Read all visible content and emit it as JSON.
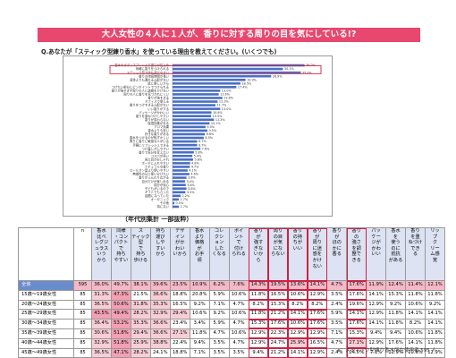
{
  "banner": {
    "title": "大人女性の４人に１人が、香りに対する周りの目を気にしている!?"
  },
  "question": {
    "text": "Q.あなたが「スティック型練り香水」を使っている理由を教えてください。(いくつでも)"
  },
  "chart_data": {
    "type": "bar",
    "orientation": "horizontal",
    "categories": [
      "香水やボディスプレーより香りが控えめ",
      "気軽に香りをつけられる",
      "スティック型で持ち運びやすい",
      "香りの持続時間が長い",
      "液体よりも漏れる心配がない",
      "肌に優しいから",
      "つけたい部分にピンポイントでつけられる",
      "香りが強すぎず周りの人に迷惑をかけない",
      "周りの人に香りを気づかれにくい",
      "香りが強すぎる",
      "オフィスで使える",
      "香りをつけすぎる心配がない",
      "いい香りがする",
      "パッケージがかわいい",
      "香りを重ねづけしやすい",
      "香りが変わらない",
      "保湿効果がある",
      "アロマ効果",
      "香水よりも安い",
      "好きな香りがある",
      "香水をつけるのが恥ずかしい",
      "周りに香りに敏感な人がいる",
      "手軽にリフレッシュできる",
      "つけ直しがしやすい",
      "香りで気分を変えたい",
      "コスパが良い",
      "見た目がおしゃれ",
      "ポーチに入れやすい",
      "ナチュラルな香り",
      "ロールオン型より使いやすい",
      "無香料の日と使い分けたい",
      "香りがふんわり広がる",
      "自分だけが楽しめる",
      "成分が安心",
      "子どもがいるので",
      "ギフトでもらった",
      "話題になっていた",
      "オーガニック",
      "その他",
      "特にない"
    ],
    "values": [
      36.0,
      30.1,
      35.0,
      26.9,
      19.9,
      18.5,
      17.4,
      13.0,
      12.6,
      13.6,
      12.3,
      11.7,
      13.0,
      10.6,
      10.5,
      11.3,
      10.1,
      9.0,
      9.5,
      8.8,
      8.5,
      6.7,
      6.7,
      7.6,
      5.8,
      5.4,
      5.6,
      4.8,
      4.7,
      4.1,
      4.6,
      3.8,
      3.4,
      3.6,
      3.8,
      3.5,
      2.2,
      1.7,
      0.5,
      1.7
    ],
    "highlighted_top": [
      "香水やボディスプレーより香りが控えめ",
      "気軽に香りをつけられる"
    ],
    "xlim": [
      0,
      40
    ]
  },
  "table": {
    "caption": "（年代別集計 一部抜粋）",
    "headers": [
      [
        "n"
      ],
      [
        "香水",
        "比べ",
        "レグジ",
        "ュラス",
        "いう",
        "から"
      ],
      [
        "同様",
        "・コン",
        "パクト",
        "で",
        "持ち",
        "やすい"
      ],
      [
        "ス",
        "ティック",
        "型",
        "で",
        "持ち",
        "歩ける"
      ],
      [
        "持ち",
        "運び",
        "しや",
        "すい",
        "から"
      ],
      [
        "デザ",
        "イン",
        "がか",
        "わい",
        "いから"
      ],
      [
        "香水",
        "より",
        "価格",
        "が",
        "お手",
        "頃"
      ],
      [
        "コレ",
        "クシ",
        "ョン",
        "した",
        "くなる"
      ],
      [
        "ポイ",
        "ント",
        "で",
        "付け",
        "られる"
      ],
      [
        "香り",
        "が",
        "強す",
        "ぎな",
        "いか",
        "ら"
      ],
      [
        "周り",
        "の目",
        "が気",
        "にな",
        "らない"
      ],
      [
        "香り",
        "の持",
        "ちが",
        "いい"
      ],
      [
        "香り",
        "が",
        "周り",
        "に迷",
        "惑を",
        "かけ",
        "ない"
      ],
      [
        "香り",
        "が",
        "ほの",
        "かに",
        "香る"
      ],
      [
        "香り",
        "の",
        "強さ",
        "を調",
        "整で",
        "きる"
      ],
      [
        "パッ",
        "ケー",
        "ジが",
        "かわ",
        "いい"
      ],
      [
        "香水",
        "を",
        "使う",
        "のに",
        "抵抗",
        "がある"
      ],
      [
        "香り",
        "を重",
        "ねづけ",
        "でき",
        "る"
      ],
      [
        "リッ",
        "プ",
        "ク",
        "リー",
        "ム感",
        "覚"
      ]
    ],
    "rows": [
      {
        "label": "全体",
        "n": "595",
        "values": [
          "36.0%",
          "49.7%",
          "38.1%",
          "39.6%",
          "23.5%",
          "10.9%",
          "6.2%",
          "7.6%",
          "14.3%",
          "19.5%",
          "13.6%",
          "14.1%",
          "4.7%",
          "17.6%",
          "11.9%",
          "12.4%",
          "11.4%",
          "12.1%"
        ]
      },
      {
        "label": "15歳〜19歳女性",
        "n": "85",
        "values": [
          "31.3%",
          "47.3%",
          "21.5%",
          "36.6%",
          "18.8%",
          "20.8%",
          "5.9%",
          "10.6%",
          "11.8%",
          "16.5%",
          "10.6%",
          "12.9%",
          "3.5%",
          "17.6%",
          "14.1%",
          "15.3%",
          "11.8%",
          "11.8%"
        ]
      },
      {
        "label": "20歳〜24歳女性",
        "n": "85",
        "values": [
          "36.5%",
          "50.6%",
          "31.8%",
          "35.3%",
          "16.5%",
          "9.2%",
          "7.1%",
          "4.7%",
          "8.2%",
          "15.3%",
          "8.2%",
          "8.2%",
          "2.4%",
          "19.6%",
          "12.9%",
          "9.2%",
          "10.6%",
          "9.2%"
        ]
      },
      {
        "label": "25歳〜29歳女性",
        "n": "85",
        "values": [
          "43.5%",
          "49.4%",
          "28.2%",
          "32.9%",
          "29.4%",
          "10.6%",
          "9.2%",
          "10.6%",
          "11.8%",
          "21.2%",
          "14.1%",
          "17.6%",
          "5.9%",
          "14.1%",
          "12.9%",
          "11.8%",
          "14.1%",
          "14.1%"
        ]
      },
      {
        "label": "30歳〜34歳女性",
        "n": "85",
        "values": [
          "36.4%",
          "53.2%",
          "35.3%",
          "36.6%",
          "23.4%",
          "3.4%",
          "5.9%",
          "4.7%",
          "15.3%",
          "17.6%",
          "10.6%",
          "17.6%",
          "3.5%",
          "17.6%",
          "14.1%",
          "11.8%",
          "8.2%",
          "14.1%"
        ]
      },
      {
        "label": "35歳〜39歳女性",
        "n": "85",
        "values": [
          "30.6%",
          "51.8%",
          "29.4%",
          "36.6%",
          "27.1%",
          "11.8%",
          "4.7%",
          "10.6%",
          "12.9%",
          "22.3%",
          "12.9%",
          "12.9%",
          "7.1%",
          "15.3%",
          "9.4%",
          "9.4%",
          "10.6%",
          "11.8%"
        ]
      },
      {
        "label": "40歳〜44歳女性",
        "n": "85",
        "values": [
          "32.9%",
          "51.8%",
          "25.9%",
          "38.8%",
          "22.4%",
          "9.4%",
          "3.5%",
          "4.7%",
          "12.9%",
          "24.7%",
          "25.9%",
          "16.5%",
          "4.7%",
          "27.1%",
          "12.9%",
          "17.6%",
          "14.1%",
          "11.8%"
        ]
      },
      {
        "label": "45歳〜49歳女性",
        "n": "85",
        "values": [
          "36.5%",
          "47.1%",
          "28.2%",
          "24.1%",
          "18.8%",
          "7.1%",
          "3.5%",
          "3.5%",
          "9.4%",
          "21.2%",
          "14.1%",
          "12.9%",
          "2.4%",
          "24.0%",
          "7.1%",
          "12.9%",
          "10.6%",
          "12.9%"
        ]
      }
    ]
  },
  "footnote": {
    "text": "n：スティック型練り香水所在使用者 595 人"
  },
  "colors": {
    "banner": "#e8476e",
    "header": "#dde3f2",
    "high": "#f2a0b2",
    "mid": "#f7cdd6",
    "total_label": "#6b8ccc",
    "bar": "#4a6fc4"
  }
}
